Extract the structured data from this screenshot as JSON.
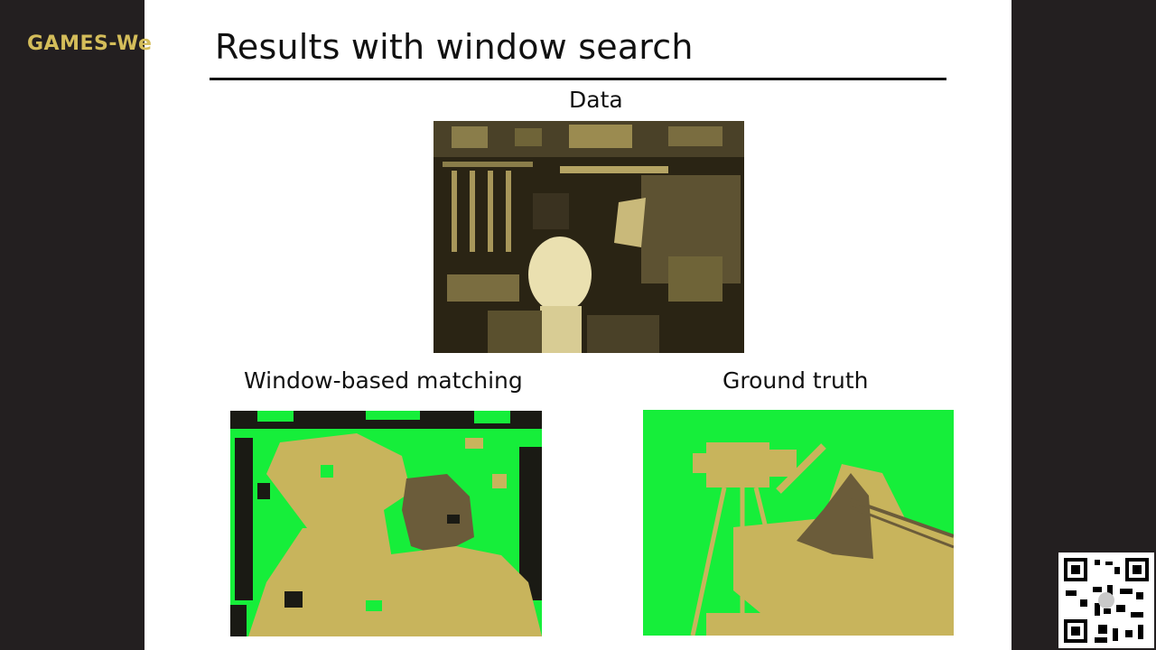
{
  "watermark": {
    "text": "GAMES-We"
  },
  "slide": {
    "title": "Results with window search",
    "captions": {
      "data": "Data",
      "window_matching": "Window-based matching",
      "ground_truth": "Ground truth"
    }
  },
  "colors": {
    "background": "#231f20",
    "watermark": "#d4bd5a",
    "disparity_near": "#c8b45c",
    "disparity_far": "#16ee3a",
    "disparity_mid": "#6b5c3a"
  },
  "icons": [
    "qr-code-icon"
  ]
}
